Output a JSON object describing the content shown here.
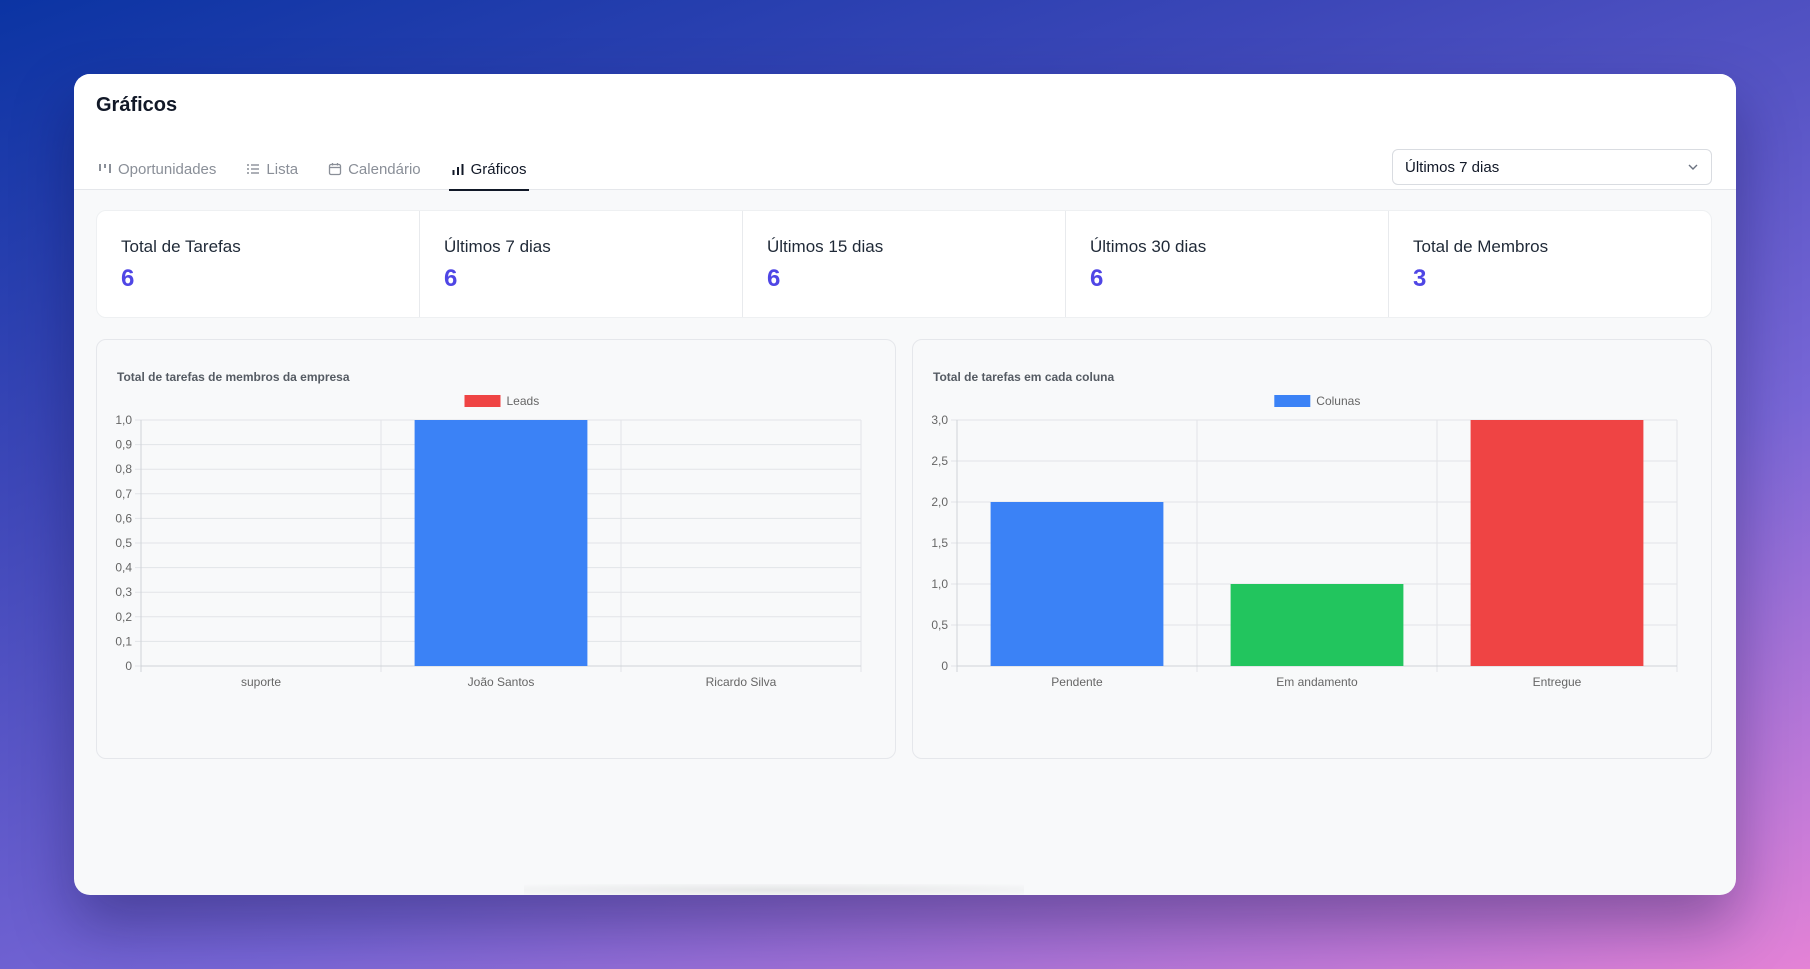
{
  "header": {
    "title": "Gráficos"
  },
  "tabs": [
    {
      "label": "Oportunidades",
      "icon": "kanban-icon",
      "active": false
    },
    {
      "label": "Lista",
      "icon": "list-icon",
      "active": false
    },
    {
      "label": "Calendário",
      "icon": "calendar-icon",
      "active": false
    },
    {
      "label": "Gráficos",
      "icon": "bar-chart-icon",
      "active": true
    }
  ],
  "period_select": {
    "value": "Últimos 7 dias"
  },
  "stats": [
    {
      "label": "Total de Tarefas",
      "value": "6"
    },
    {
      "label": "Últimos 7 dias",
      "value": "6"
    },
    {
      "label": "Últimos 15 dias",
      "value": "6"
    },
    {
      "label": "Últimos 30 dias",
      "value": "6"
    },
    {
      "label": "Total de Membros",
      "value": "3"
    }
  ],
  "chart_data": [
    {
      "type": "bar",
      "title": "Total de tarefas de membros da empresa",
      "categories": [
        "suporte",
        "João Santos",
        "Ricardo Silva"
      ],
      "series": [
        {
          "name": "Leads",
          "values": [
            0,
            1,
            0
          ],
          "legend_color": "#ef4444",
          "bar_colors": [
            "#3b82f6",
            "#3b82f6",
            "#3b82f6"
          ]
        }
      ],
      "ylim": [
        0,
        1
      ],
      "yticks": [
        "0",
        "0,1",
        "0,2",
        "0,3",
        "0,4",
        "0,5",
        "0,6",
        "0,7",
        "0,8",
        "0,9",
        "1,0"
      ],
      "legend": "top-center",
      "grid": true
    },
    {
      "type": "bar",
      "title": "Total de tarefas em cada coluna",
      "categories": [
        "Pendente",
        "Em andamento",
        "Entregue"
      ],
      "series": [
        {
          "name": "Colunas",
          "values": [
            2,
            1,
            3
          ],
          "legend_color": "#3b82f6",
          "bar_colors": [
            "#3b82f6",
            "#22c55e",
            "#ef4444"
          ]
        }
      ],
      "ylim": [
        0,
        3
      ],
      "yticks": [
        "0",
        "0,5",
        "1,0",
        "1,5",
        "2,0",
        "2,5",
        "3,0"
      ],
      "legend": "top-center",
      "grid": true
    }
  ]
}
